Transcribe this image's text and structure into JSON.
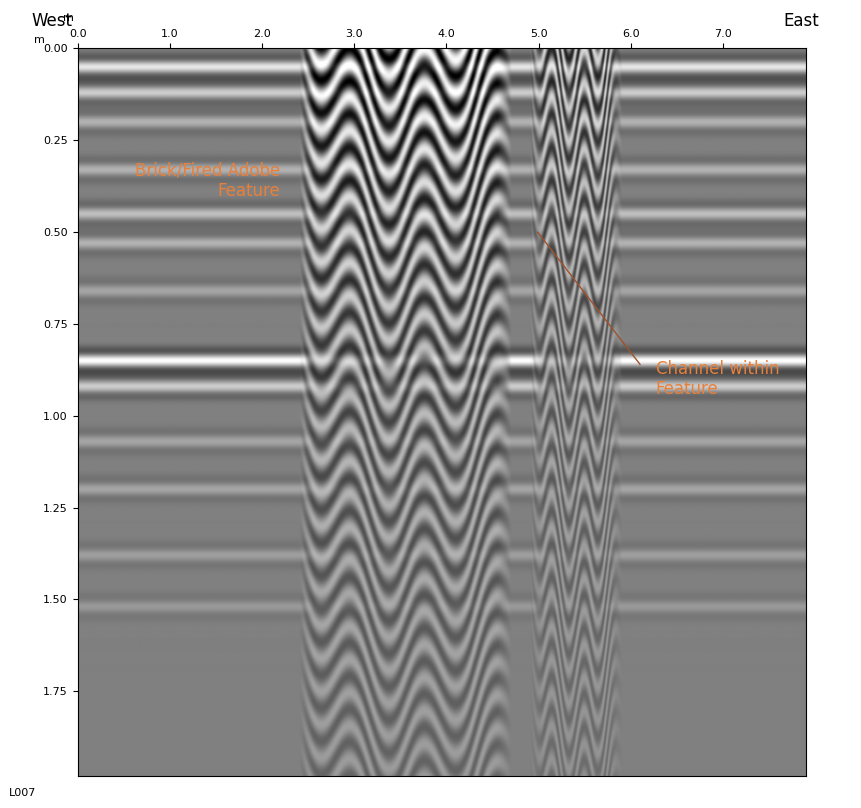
{
  "chart_data": {
    "type": "radargram",
    "title_left": "West",
    "title_right": "East",
    "x_unit": "m",
    "y_unit": "m",
    "line_label": "L007",
    "xlim": [
      0,
      7.9
    ],
    "ylim": [
      1.98,
      0
    ],
    "xticks": [
      {
        "value": 0,
        "label": "0.0"
      },
      {
        "value": 1,
        "label": "1.0"
      },
      {
        "value": 2,
        "label": "2.0"
      },
      {
        "value": 3,
        "label": "3.0"
      },
      {
        "value": 4,
        "label": "4.0"
      },
      {
        "value": 5,
        "label": "5.0"
      },
      {
        "value": 6,
        "label": "6.0"
      },
      {
        "value": 7,
        "label": "7.0"
      }
    ],
    "yticks": [
      {
        "value": 0,
        "label": "0.00"
      },
      {
        "value": 0.25,
        "label": "0.25"
      },
      {
        "value": 0.5,
        "label": "0.50"
      },
      {
        "value": 0.75,
        "label": "0.75"
      },
      {
        "value": 1,
        "label": "1.00"
      },
      {
        "value": 1.25,
        "label": "1.25"
      },
      {
        "value": 1.5,
        "label": "1.50"
      },
      {
        "value": 1.75,
        "label": "1.75"
      }
    ],
    "horizontal_reflectors": [
      {
        "depth": 0.05,
        "amplitude": 0.8
      },
      {
        "depth": 0.12,
        "amplitude": 0.6
      },
      {
        "depth": 0.2,
        "amplitude": 0.4
      },
      {
        "depth": 0.33,
        "amplitude": 0.4
      },
      {
        "depth": 0.45,
        "amplitude": 0.5
      },
      {
        "depth": 0.53,
        "amplitude": 0.4
      },
      {
        "depth": 0.66,
        "amplitude": 0.3
      },
      {
        "depth": 0.85,
        "amplitude": 1.0
      },
      {
        "depth": 0.92,
        "amplitude": 0.6
      },
      {
        "depth": 1.07,
        "amplitude": 0.3
      },
      {
        "depth": 1.2,
        "amplitude": 0.3
      },
      {
        "depth": 1.38,
        "amplitude": 0.25
      },
      {
        "depth": 1.52,
        "amplitude": 0.2
      }
    ],
    "features": [
      {
        "x": [
          2.4,
          4.7
        ],
        "amplitude": 1.0
      },
      {
        "x": [
          4.9,
          5.9
        ],
        "amplitude": 0.7
      }
    ],
    "annotations": [
      {
        "text": "Brick/Fired Adobe\nFeature"
      },
      {
        "text": "Channel within\nFeature"
      }
    ]
  }
}
